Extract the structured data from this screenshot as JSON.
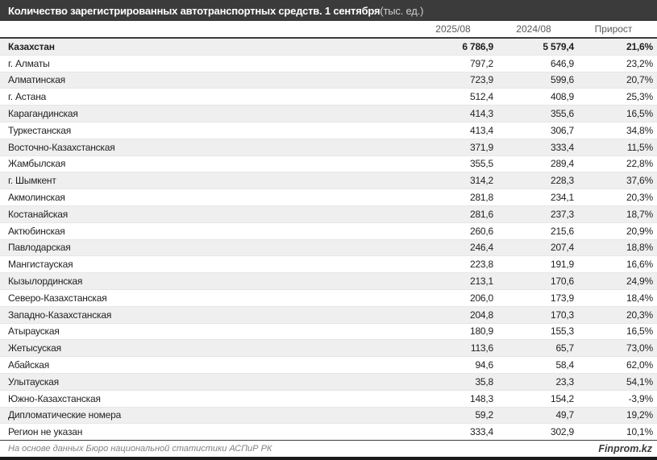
{
  "title": {
    "main": "Количество зарегистрированных автотранспортных средств. 1 сентября",
    "unit": " (тыс. ед.)"
  },
  "table": {
    "columns": [
      "2025/08",
      "2024/08",
      "Прирост"
    ],
    "rows": [
      {
        "region": "Казахстан",
        "v2025": "6 786,9",
        "v2024": "5 579,4",
        "growth": "21,6%",
        "is_total": true
      },
      {
        "region": "г. Алматы",
        "v2025": "797,2",
        "v2024": "646,9",
        "growth": "23,2%"
      },
      {
        "region": "Алматинская",
        "v2025": "723,9",
        "v2024": "599,6",
        "growth": "20,7%"
      },
      {
        "region": "г. Астана",
        "v2025": "512,4",
        "v2024": "408,9",
        "growth": "25,3%"
      },
      {
        "region": "Карагандинская",
        "v2025": "414,3",
        "v2024": "355,6",
        "growth": "16,5%"
      },
      {
        "region": "Туркестанская",
        "v2025": "413,4",
        "v2024": "306,7",
        "growth": "34,8%"
      },
      {
        "region": "Восточно-Казахстанская",
        "v2025": "371,9",
        "v2024": "333,4",
        "growth": "11,5%"
      },
      {
        "region": "Жамбылская",
        "v2025": "355,5",
        "v2024": "289,4",
        "growth": "22,8%"
      },
      {
        "region": "г. Шымкент",
        "v2025": "314,2",
        "v2024": "228,3",
        "growth": "37,6%"
      },
      {
        "region": "Акмолинская",
        "v2025": "281,8",
        "v2024": "234,1",
        "growth": "20,3%"
      },
      {
        "region": "Костанайская",
        "v2025": "281,6",
        "v2024": "237,3",
        "growth": "18,7%"
      },
      {
        "region": "Актюбинская",
        "v2025": "260,6",
        "v2024": "215,6",
        "growth": "20,9%"
      },
      {
        "region": "Павлодарская",
        "v2025": "246,4",
        "v2024": "207,4",
        "growth": "18,8%"
      },
      {
        "region": "Мангистауская",
        "v2025": "223,8",
        "v2024": "191,9",
        "growth": "16,6%"
      },
      {
        "region": "Кызылординская",
        "v2025": "213,1",
        "v2024": "170,6",
        "growth": "24,9%"
      },
      {
        "region": "Северо-Казахстанская",
        "v2025": "206,0",
        "v2024": "173,9",
        "growth": "18,4%"
      },
      {
        "region": "Западно-Казахстанская",
        "v2025": "204,8",
        "v2024": "170,3",
        "growth": "20,3%"
      },
      {
        "region": "Атырауская",
        "v2025": "180,9",
        "v2024": "155,3",
        "growth": "16,5%"
      },
      {
        "region": "Жетысуская",
        "v2025": "113,6",
        "v2024": "65,7",
        "growth": "73,0%"
      },
      {
        "region": "Абайская",
        "v2025": "94,6",
        "v2024": "58,4",
        "growth": "62,0%"
      },
      {
        "region": "Улытауская",
        "v2025": "35,8",
        "v2024": "23,3",
        "growth": "54,1%"
      },
      {
        "region": "Южно-Казахстанская",
        "v2025": "148,3",
        "v2024": "154,2",
        "growth": "-3,9%"
      },
      {
        "region": "Дипломатические номера",
        "v2025": "59,2",
        "v2024": "49,7",
        "growth": "19,2%"
      },
      {
        "region": "Регион не указан",
        "v2025": "333,4",
        "v2024": "302,9",
        "growth": "10,1%"
      }
    ]
  },
  "footer": {
    "source": "На основе данных Бюро национальной статистики АСПиР РК",
    "brand": "Finprom.kz"
  },
  "colors": {
    "titlebar_bg": "#3b3b3b",
    "titlebar_text": "#ffffff",
    "header_text": "#595959",
    "row_alt_bg": "#efefef",
    "row_bg": "#ffffff",
    "body_text": "#1f1f1f",
    "bottom_bar": "#1a1a1a"
  },
  "chart_data": {
    "type": "table",
    "title": "Количество зарегистрированных автотранспортных средств. 1 сентября (тыс. ед.)",
    "columns": [
      "2025/08",
      "2024/08",
      "Прирост"
    ],
    "categories": [
      "Казахстан",
      "г. Алматы",
      "Алматинская",
      "г. Астана",
      "Карагандинская",
      "Туркестанская",
      "Восточно-Казахстанская",
      "Жамбылская",
      "г. Шымкент",
      "Акмолинская",
      "Костанайская",
      "Актюбинская",
      "Павлодарская",
      "Мангистауская",
      "Кызылординская",
      "Северо-Казахстанская",
      "Западно-Казахстанская",
      "Атырауская",
      "Жетысуская",
      "Абайская",
      "Улытауская",
      "Южно-Казахстанская",
      "Дипломатические номера",
      "Регион не указан"
    ],
    "series": [
      {
        "name": "2025/08",
        "values": [
          6786.9,
          797.2,
          723.9,
          512.4,
          414.3,
          413.4,
          371.9,
          355.5,
          314.2,
          281.8,
          281.6,
          260.6,
          246.4,
          223.8,
          213.1,
          206.0,
          204.8,
          180.9,
          113.6,
          94.6,
          35.8,
          148.3,
          59.2,
          333.4
        ]
      },
      {
        "name": "2024/08",
        "values": [
          5579.4,
          646.9,
          599.6,
          408.9,
          355.6,
          306.7,
          333.4,
          289.4,
          228.3,
          234.1,
          237.3,
          215.6,
          207.4,
          191.9,
          170.6,
          173.9,
          170.3,
          155.3,
          65.7,
          58.4,
          23.3,
          154.2,
          49.7,
          302.9
        ]
      },
      {
        "name": "Прирост, %",
        "values": [
          21.6,
          23.2,
          20.7,
          25.3,
          16.5,
          34.8,
          11.5,
          22.8,
          37.6,
          20.3,
          18.7,
          20.9,
          18.8,
          16.6,
          24.9,
          18.4,
          20.3,
          16.5,
          73.0,
          62.0,
          54.1,
          -3.9,
          19.2,
          10.1
        ]
      }
    ],
    "source": "На основе данных Бюро национальной статистики АСПиР РК"
  }
}
